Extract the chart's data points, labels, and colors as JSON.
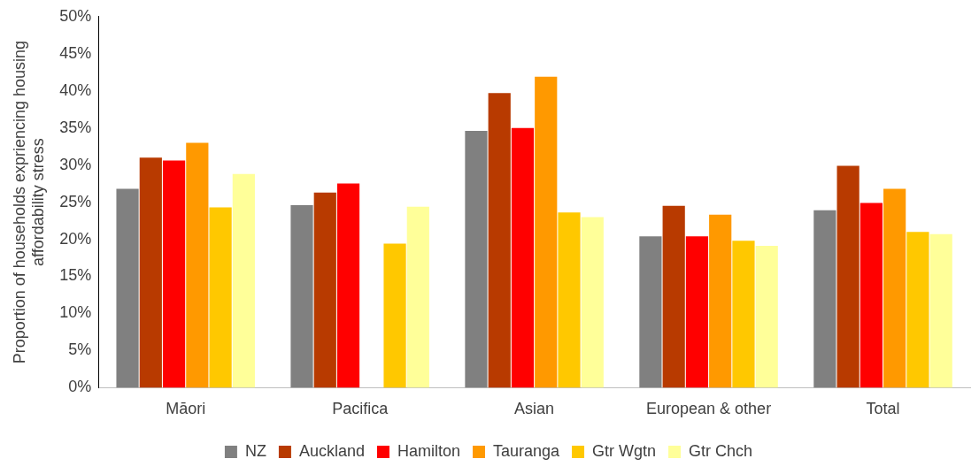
{
  "chart_data": {
    "type": "bar",
    "ylabel": "Proportion of households expriencing housing affordability stress",
    "categories": [
      "Māori",
      "Pacifica",
      "Asian",
      "European & other",
      "Total"
    ],
    "series": [
      {
        "name": "NZ",
        "color": "#808080",
        "values": [
          26.8,
          24.6,
          34.6,
          20.4,
          23.9
        ]
      },
      {
        "name": "Auckland",
        "color": "#b83a00",
        "values": [
          31.0,
          26.3,
          39.7,
          24.5,
          29.9
        ]
      },
      {
        "name": "Hamilton",
        "color": "#ff0000",
        "values": [
          30.6,
          27.5,
          35.0,
          20.4,
          24.9
        ]
      },
      {
        "name": "Tauranga",
        "color": "#ff9900",
        "values": [
          33.0,
          null,
          41.9,
          23.3,
          26.8
        ]
      },
      {
        "name": "Gtr Wgtn",
        "color": "#ffc800",
        "values": [
          24.3,
          19.4,
          23.6,
          19.8,
          21.0
        ]
      },
      {
        "name": "Gtr Chch",
        "color": "#ffff99",
        "values": [
          28.8,
          24.4,
          23.0,
          19.1,
          20.7
        ]
      }
    ],
    "ylim": [
      0,
      50
    ],
    "yticks": [
      {
        "value": 0,
        "label": "0%"
      },
      {
        "value": 5,
        "label": "5%"
      },
      {
        "value": 10,
        "label": "10%"
      },
      {
        "value": 15,
        "label": "15%"
      },
      {
        "value": 20,
        "label": "20%"
      },
      {
        "value": 25,
        "label": "25%"
      },
      {
        "value": 30,
        "label": "30%"
      },
      {
        "value": 35,
        "label": "35%"
      },
      {
        "value": 40,
        "label": "40%"
      },
      {
        "value": 45,
        "label": "45%"
      },
      {
        "value": 50,
        "label": "50%"
      }
    ],
    "grid": false,
    "legend": "bottom"
  }
}
